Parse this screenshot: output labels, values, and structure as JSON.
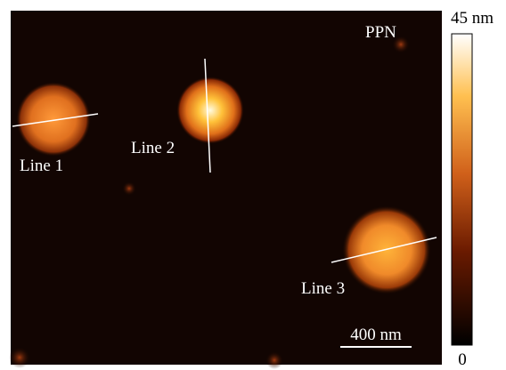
{
  "image": {
    "sample_label": "PPN",
    "profiles": [
      "Line 1",
      "Line 2",
      "Line 3"
    ],
    "scale_bar": "400 nm"
  },
  "colorbar": {
    "max_label": "45 nm",
    "min_label": "0"
  }
}
